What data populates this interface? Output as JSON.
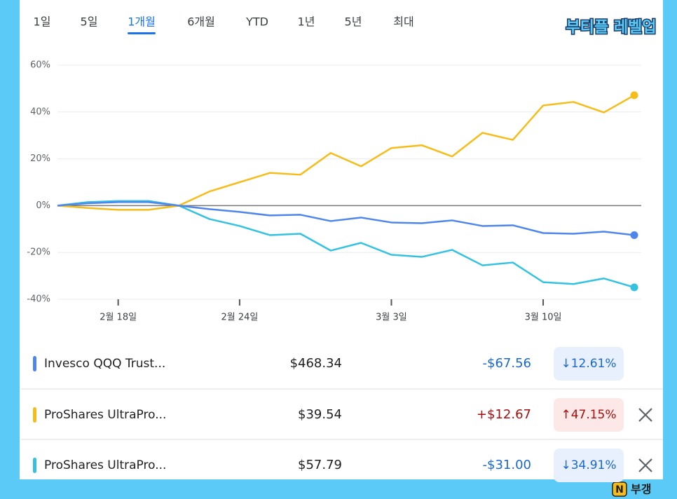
{
  "tabs": [
    "1일",
    "5일",
    "1개월",
    "6개월",
    "YTD",
    "1년",
    "5년",
    "최대"
  ],
  "active_tab": 2,
  "watermark": "부티플 레벨업",
  "footer_logo": {
    "badge": "N",
    "text": "부갱"
  },
  "chart_data": {
    "type": "line",
    "categories": [
      null,
      null,
      "2월 18일",
      null,
      null,
      null,
      "2월 24일",
      null,
      null,
      null,
      null,
      "3월 3일",
      null,
      null,
      null,
      null,
      "3월 10일",
      null,
      null,
      null
    ],
    "ylim": [
      -40,
      60
    ],
    "yticks": [
      {
        "value": -40,
        "label": "-40%"
      },
      {
        "value": -20,
        "label": "-20%"
      },
      {
        "value": 0,
        "label": "0%"
      },
      {
        "value": 20,
        "label": "20%"
      },
      {
        "value": 40,
        "label": "40%"
      },
      {
        "value": 60,
        "label": "60%"
      }
    ],
    "grid": true,
    "series": [
      {
        "name": "Invesco QQQ Trust...",
        "color": "#4f86ec",
        "values": [
          0,
          1,
          1.5,
          1.5,
          0,
          -1.5,
          -2.7,
          -4.2,
          -3.9,
          -6.6,
          -5.1,
          -7.2,
          -7.5,
          -6.3,
          -8.7,
          -8.4,
          -11.7,
          -12,
          -11.1,
          -12.61
        ]
      },
      {
        "name": "ProShares UltraPro...",
        "color": "#f6bd1a",
        "values": [
          0,
          -1,
          -1.8,
          -1.8,
          0,
          6,
          10,
          14,
          13.2,
          22.5,
          16.8,
          24.6,
          25.8,
          21,
          31.1,
          28.1,
          42.8,
          44.3,
          39.8,
          47.15
        ]
      },
      {
        "name": "ProShares UltraPro...",
        "color": "#33c3e0",
        "values": [
          0,
          1.5,
          2,
          2,
          0,
          -5.7,
          -8.7,
          -12.6,
          -12,
          -19.2,
          -15.9,
          -21,
          -21.9,
          -18.9,
          -25.5,
          -24.3,
          -32.7,
          -33.5,
          -31.1,
          -34.91
        ]
      }
    ]
  },
  "rows": [
    {
      "price": "$468.34",
      "change": "-$67.56",
      "change_pct": "↓12.61%",
      "direction": "down"
    },
    {
      "price": "$39.54",
      "change": "+$12.67",
      "change_pct": "↑47.15%",
      "direction": "up"
    },
    {
      "price": "$57.79",
      "change": "-$31.00",
      "change_pct": "↓34.91%",
      "direction": "down"
    }
  ]
}
